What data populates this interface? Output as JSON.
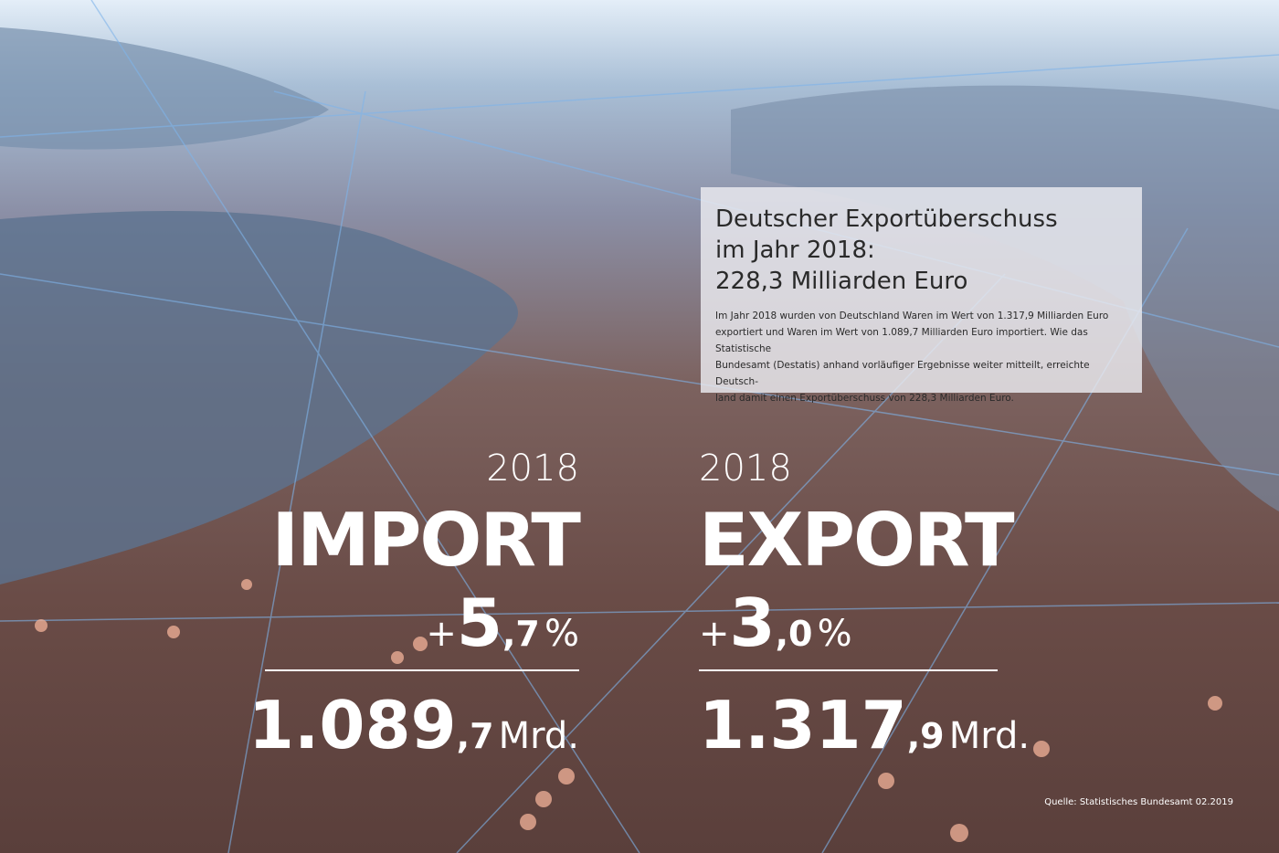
{
  "info_box": {
    "title_lines": [
      "Deutscher Exportüberschuss",
      "im Jahr 2018:",
      "228,3 Milliarden Euro"
    ],
    "body_lines": [
      "Im Jahr 2018 wurden von Deutschland Waren im Wert von 1.317,9 Milliarden Euro",
      "exportiert und Waren im Wert von 1.089,7 Milliarden Euro importiert. Wie das Statistische",
      "Bundesamt (Destatis) anhand vorläufiger Ergebnisse weiter mitteilt, erreichte Deutsch-",
      "land damit einen Exportüberschuss von 228,3 Milliarden Euro."
    ]
  },
  "import": {
    "year": "2018",
    "label": "IMPORT",
    "change_sign": "+",
    "change_main": "5",
    "change_decimal": ",7",
    "change_unit": "%",
    "amount_main": "1.089",
    "amount_decimal": ",7",
    "amount_unit": "Mrd."
  },
  "export": {
    "year": "2018",
    "label": "EXPORT",
    "change_sign": "+",
    "change_main": "3",
    "change_decimal": ",0",
    "change_unit": "%",
    "amount_main": "1.317",
    "amount_decimal": ",9",
    "amount_unit": "Mrd."
  },
  "source": "Quelle: Statistisches Bundesamt 02.2019"
}
